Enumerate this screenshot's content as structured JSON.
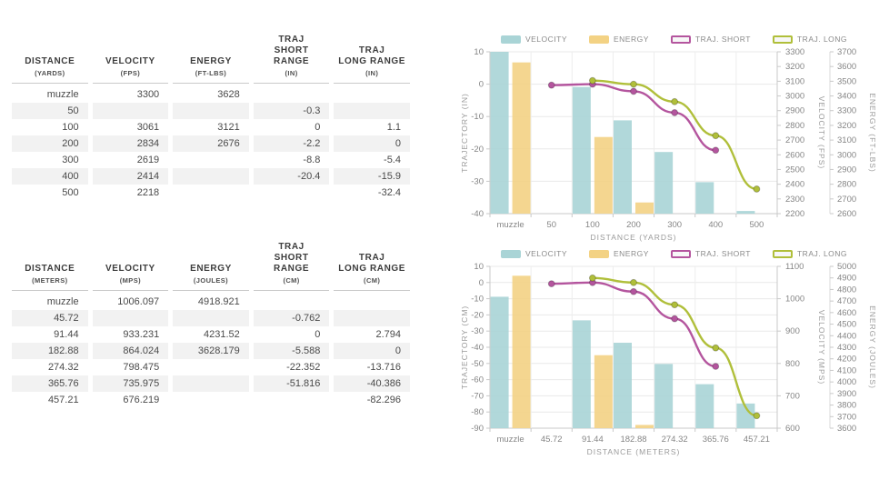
{
  "page": {
    "background": "#ffffff"
  },
  "theme": {
    "velocity_color": "#a9d4d6",
    "energy_color": "#f3d284",
    "traj_short_color": "#b4559e",
    "traj_long_color": "#b0bf3a",
    "grid_color": "#e9e9e9",
    "axis_color": "#c9c9c9",
    "tick_text_color": "#858585",
    "table_alt_row": "#f2f2f2"
  },
  "tables": [
    {
      "name": "imperial-table",
      "columns": [
        {
          "label_lines": [
            "DISTANCE"
          ],
          "unit": "(YARDS)"
        },
        {
          "label_lines": [
            "VELOCITY"
          ],
          "unit": "(FPS)"
        },
        {
          "label_lines": [
            "ENERGY"
          ],
          "unit": "(FT-LBS)"
        },
        {
          "label_lines": [
            "TRAJ",
            "SHORT RANGE"
          ],
          "unit": "(IN)"
        },
        {
          "label_lines": [
            "TRAJ",
            "LONG RANGE"
          ],
          "unit": "(IN)"
        }
      ],
      "rows": [
        [
          "muzzle",
          "3300",
          "3628",
          "",
          ""
        ],
        [
          "50",
          "",
          "",
          "-0.3",
          ""
        ],
        [
          "100",
          "3061",
          "3121",
          "0",
          "1.1"
        ],
        [
          "200",
          "2834",
          "2676",
          "-2.2",
          "0"
        ],
        [
          "300",
          "2619",
          "",
          "-8.8",
          "-5.4"
        ],
        [
          "400",
          "2414",
          "",
          "-20.4",
          "-15.9"
        ],
        [
          "500",
          "2218",
          "",
          "",
          "-32.4"
        ]
      ]
    },
    {
      "name": "metric-table",
      "columns": [
        {
          "label_lines": [
            "DISTANCE"
          ],
          "unit": "(METERS)"
        },
        {
          "label_lines": [
            "VELOCITY"
          ],
          "unit": "(MPS)"
        },
        {
          "label_lines": [
            "ENERGY"
          ],
          "unit": "(JOULES)"
        },
        {
          "label_lines": [
            "TRAJ",
            "SHORT RANGE"
          ],
          "unit": "(CM)"
        },
        {
          "label_lines": [
            "TRAJ",
            "LONG RANGE"
          ],
          "unit": "(CM)"
        }
      ],
      "rows": [
        [
          "muzzle",
          "1006.097",
          "4918.921",
          "",
          ""
        ],
        [
          "45.72",
          "",
          "",
          "-0.762",
          ""
        ],
        [
          "91.44",
          "933.231",
          "4231.52",
          "0",
          "2.794"
        ],
        [
          "182.88",
          "864.024",
          "3628.179",
          "-5.588",
          "0"
        ],
        [
          "274.32",
          "798.475",
          "",
          "-22.352",
          "-13.716"
        ],
        [
          "365.76",
          "735.975",
          "",
          "-51.816",
          "-40.386"
        ],
        [
          "457.21",
          "676.219",
          "",
          "",
          "-82.296"
        ]
      ]
    }
  ],
  "chart_data": [
    {
      "type": "bar+line combo",
      "name": "imperial-chart",
      "categories": [
        "muzzle",
        "50",
        "100",
        "200",
        "300",
        "400",
        "500"
      ],
      "xlabel": "DISTANCE (YARDS)",
      "grid": true,
      "legend_position": "top",
      "axes": {
        "left": {
          "label": "TRAJECTORY (IN)",
          "min": -40,
          "max": 10,
          "step": 10,
          "color": "#9a9a9a"
        },
        "right1": {
          "label": "VELOCITY (FPS)",
          "min": 2200,
          "max": 3300,
          "step": 100,
          "color": "#a3ced0"
        },
        "right2": {
          "label": "ENERGY (FT-LBS)",
          "min": 2600,
          "max": 3700,
          "step": 100,
          "color": "#eecb7c"
        }
      },
      "series": [
        {
          "name": "VELOCITY",
          "type": "bar",
          "axis": "right1",
          "color": "#a9d4d6",
          "values": [
            3300,
            null,
            3061,
            2834,
            2619,
            2414,
            2218
          ]
        },
        {
          "name": "ENERGY",
          "type": "bar",
          "axis": "right2",
          "color": "#f3d284",
          "values": [
            3628,
            null,
            3121,
            2676,
            null,
            null,
            null
          ]
        },
        {
          "name": "TRAJ. SHORT",
          "type": "line",
          "axis": "left",
          "color": "#b4559e",
          "values": [
            null,
            -0.3,
            0,
            -2.2,
            -8.8,
            -20.4,
            null
          ]
        },
        {
          "name": "TRAJ. LONG",
          "type": "line",
          "axis": "left",
          "color": "#b0bf3a",
          "values": [
            null,
            null,
            1.1,
            0,
            -5.4,
            -15.9,
            -32.4
          ]
        }
      ]
    },
    {
      "type": "bar+line combo",
      "name": "metric-chart",
      "categories": [
        "muzzle",
        "45.72",
        "91.44",
        "182.88",
        "274.32",
        "365.76",
        "457.21"
      ],
      "xlabel": "DISTANCE (METERS)",
      "grid": true,
      "legend_position": "top",
      "axes": {
        "left": {
          "label": "TRAJECTORY (CM)",
          "min": -90,
          "max": 10,
          "step": 10,
          "color": "#9a9a9a"
        },
        "right1": {
          "label": "VELOCITY (MPS)",
          "min": 600,
          "max": 1100,
          "step": 100,
          "color": "#a3ced0"
        },
        "right2": {
          "label": "ENERGY (JOULES)",
          "min": 3600,
          "max": 5000,
          "step": 100,
          "color": "#eecb7c"
        }
      },
      "series": [
        {
          "name": "VELOCITY",
          "type": "bar",
          "axis": "right1",
          "color": "#a9d4d6",
          "values": [
            1006.097,
            null,
            933.231,
            864.024,
            798.475,
            735.975,
            676.219
          ]
        },
        {
          "name": "ENERGY",
          "type": "bar",
          "axis": "right2",
          "color": "#f3d284",
          "values": [
            4918.921,
            null,
            4231.52,
            3628.179,
            null,
            null,
            null
          ]
        },
        {
          "name": "TRAJ. SHORT",
          "type": "line",
          "axis": "left",
          "color": "#b4559e",
          "values": [
            null,
            -0.762,
            0,
            -5.588,
            -22.352,
            -51.816,
            null
          ]
        },
        {
          "name": "TRAJ. LONG",
          "type": "line",
          "axis": "left",
          "color": "#b0bf3a",
          "values": [
            null,
            null,
            2.794,
            0,
            -13.716,
            -40.386,
            -82.296
          ]
        }
      ]
    }
  ]
}
